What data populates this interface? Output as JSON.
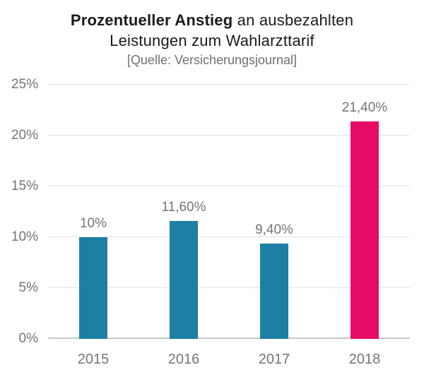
{
  "title": {
    "bold": "Prozentueller Anstieg",
    "regular": " an ausbezahlten",
    "line2": "Leistungen zum Wahlarzttarif",
    "source": "[Quelle: Versicherungsjournal]"
  },
  "colors": {
    "bar_default": "#1d7fa4",
    "bar_highlight": "#e50b67",
    "gridline": "#e2e2e2",
    "axis_line": "#c7c7c7",
    "muted_text": "#757575",
    "title_text": "#1b1b1b"
  },
  "chart_data": {
    "type": "bar",
    "title": "Prozentueller Anstieg an ausbezahlten Leistungen zum Wahlarzttarif",
    "subtitle": "[Quelle: Versicherungsjournal]",
    "categories": [
      "2015",
      "2016",
      "2017",
      "2018"
    ],
    "values": [
      10,
      11.6,
      9.4,
      21.4
    ],
    "value_labels": [
      "10%",
      "11,60%",
      "9,40%",
      "21,40%"
    ],
    "bar_colors": [
      "#1d7fa4",
      "#1d7fa4",
      "#1d7fa4",
      "#e50b67"
    ],
    "xlabel": "",
    "ylabel": "",
    "ylim": [
      0,
      25
    ],
    "yticks": [
      0,
      5,
      10,
      15,
      20,
      25
    ],
    "ytick_labels": [
      "0%",
      "5%",
      "10%",
      "15%",
      "20%",
      "25%"
    ],
    "grid": true,
    "legend": false,
    "highlight_category": "2018"
  }
}
